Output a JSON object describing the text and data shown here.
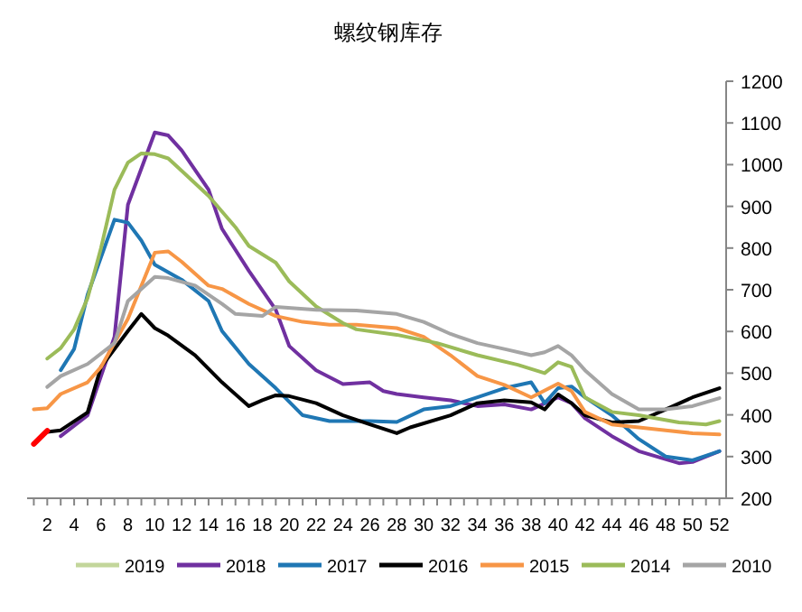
{
  "chart_data": {
    "type": "line",
    "title": "螺纹钢库存",
    "xlim": [
      0.5,
      52.5
    ],
    "ylim": [
      200,
      1200
    ],
    "yticks": [
      200,
      300,
      400,
      500,
      600,
      700,
      800,
      900,
      1000,
      1100,
      1200
    ],
    "xticks": [
      {
        "value": 1,
        "label": null
      },
      2,
      {
        "value": 3,
        "label": null
      },
      4,
      {
        "value": 5,
        "label": null
      },
      6,
      {
        "value": 7,
        "label": null
      },
      8,
      {
        "value": 9,
        "label": null
      },
      10,
      {
        "value": 11,
        "label": null
      },
      12,
      {
        "value": 13,
        "label": null
      },
      14,
      {
        "value": 15,
        "label": null
      },
      16,
      {
        "value": 17,
        "label": null
      },
      18,
      {
        "value": 19,
        "label": null
      },
      20,
      {
        "value": 21,
        "label": null
      },
      22,
      {
        "value": 23,
        "label": null
      },
      24,
      {
        "value": 25,
        "label": null
      },
      26,
      {
        "value": 27,
        "label": null
      },
      28,
      {
        "value": 29,
        "label": null
      },
      30,
      {
        "value": 31,
        "label": null
      },
      32,
      {
        "value": 33,
        "label": null
      },
      34,
      {
        "value": 35,
        "label": null
      },
      36,
      {
        "value": 37,
        "label": null
      },
      38,
      {
        "value": 39,
        "label": null
      },
      40,
      {
        "value": 41,
        "label": null
      },
      42,
      {
        "value": 43,
        "label": null
      },
      44,
      {
        "value": 45,
        "label": null
      },
      46,
      {
        "value": 47,
        "label": null
      },
      48,
      {
        "value": 49,
        "label": null
      },
      50,
      {
        "value": 51,
        "label": null
      },
      52
    ],
    "grid": false,
    "legend": "bottom",
    "marker": "none",
    "line_style": "solid",
    "series": [
      {
        "name": "2019",
        "color": "#c3d69b"
      },
      {
        "name": "2018",
        "color": "#7030a0",
        "x": [
          3,
          5,
          7,
          8,
          10,
          11,
          12,
          14,
          15,
          17,
          19,
          20,
          22,
          24,
          26,
          27,
          28,
          30,
          32,
          34,
          36,
          38,
          40,
          41,
          42,
          44,
          46,
          49,
          50,
          52
        ],
        "values": [
          349,
          399,
          587,
          904,
          1077,
          1070,
          1034,
          940,
          846,
          745,
          652,
          565,
          507,
          474,
          478,
          457,
          450,
          442,
          435,
          421,
          425,
          413,
          442,
          428,
          392,
          349,
          313,
          284,
          287,
          313
        ]
      },
      {
        "name": "2017",
        "color": "#1f77b4",
        "x": [
          3,
          4,
          5,
          7,
          8,
          9,
          10,
          12,
          14,
          15,
          17,
          19,
          21,
          23,
          26,
          28,
          30,
          32,
          34,
          36,
          38,
          39,
          40,
          41,
          42,
          44,
          46,
          48,
          50,
          52
        ],
        "values": [
          507,
          558,
          688,
          868,
          861,
          818,
          760,
          724,
          673,
          601,
          522,
          464,
          399,
          385,
          385,
          383,
          413,
          421,
          442,
          464,
          478,
          428,
          464,
          468,
          442,
          399,
          342,
          300,
          291,
          313
        ]
      },
      {
        "name": "2016",
        "color": "#000000",
        "x": [
          2,
          3,
          5,
          6,
          8,
          9,
          10,
          11,
          13,
          15,
          17,
          18,
          19,
          20,
          22,
          24,
          26,
          28,
          29,
          32,
          34,
          36,
          38,
          39,
          40,
          41,
          42,
          44,
          46,
          48,
          50,
          52
        ],
        "values": [
          359,
          363,
          406,
          515,
          601,
          642,
          608,
          590,
          543,
          478,
          421,
          435,
          447,
          445,
          428,
          399,
          377,
          356,
          370,
          399,
          428,
          435,
          430,
          413,
          449,
          428,
          399,
          382,
          385,
          413,
          442,
          464
        ]
      },
      {
        "name": "2015",
        "color": "#f79646",
        "x": [
          1,
          2,
          3,
          5,
          6,
          8,
          10,
          11,
          12,
          14,
          15,
          17,
          19,
          21,
          23,
          25,
          28,
          30,
          32,
          34,
          36,
          38,
          40,
          41,
          42,
          44,
          46,
          48,
          50,
          52
        ],
        "values": [
          413,
          416,
          450,
          478,
          515,
          630,
          789,
          792,
          767,
          710,
          702,
          666,
          637,
          623,
          616,
          616,
          608,
          587,
          543,
          493,
          472,
          442,
          475,
          457,
          407,
          377,
          370,
          363,
          356,
          353
        ]
      },
      {
        "name": "2014",
        "color": "#9bbb59",
        "x": [
          2,
          3,
          4,
          5,
          6,
          7,
          8,
          9,
          10,
          11,
          12,
          14,
          16,
          17,
          19,
          20,
          22,
          24,
          25,
          28,
          31,
          34,
          37,
          39,
          40,
          41,
          42,
          44,
          46,
          49,
          51,
          52
        ],
        "values": [
          535,
          560,
          605,
          680,
          800,
          940,
          1005,
          1027,
          1025,
          1015,
          985,
          925,
          850,
          805,
          765,
          720,
          660,
          620,
          605,
          592,
          572,
          543,
          520,
          500,
          526,
          515,
          442,
          407,
          399,
          382,
          377,
          385
        ]
      },
      {
        "name": "2010",
        "color": "#a5a5a5",
        "x": [
          2,
          3,
          5,
          7,
          8,
          10,
          11,
          13,
          15,
          16,
          18,
          19,
          22,
          25,
          28,
          30,
          32,
          34,
          36,
          38,
          39,
          40,
          41,
          42,
          44,
          46,
          48,
          50,
          52
        ],
        "values": [
          467,
          493,
          522,
          572,
          673,
          731,
          728,
          710,
          666,
          642,
          637,
          659,
          652,
          650,
          642,
          623,
          594,
          572,
          558,
          543,
          550,
          565,
          543,
          507,
          450,
          413,
          413,
          421,
          440
        ]
      },
      {
        "color": "#ff0000",
        "x": [
          1,
          2
        ],
        "values": [
          330,
          362
        ]
      }
    ]
  }
}
